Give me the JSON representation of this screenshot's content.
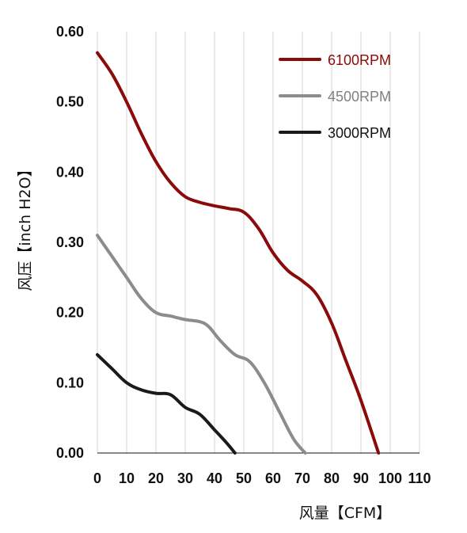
{
  "chart_data": {
    "type": "line",
    "title": "",
    "xlabel": "风量【CFM】",
    "ylabel": "风压【inch H2O】",
    "xlim": [
      0,
      110
    ],
    "ylim": [
      0,
      0.6
    ],
    "x_ticks": [
      "0",
      "10",
      "20",
      "30",
      "40",
      "50",
      "60",
      "70",
      "80",
      "90",
      "100",
      "110"
    ],
    "y_ticks": [
      "0.00",
      "0.10",
      "0.20",
      "0.30",
      "0.40",
      "0.50",
      "0.60"
    ],
    "grid": "vertical",
    "legend_position": "top-right",
    "series": [
      {
        "name": "6100RPM",
        "color": "#8b0a0a",
        "x": [
          0,
          5,
          10,
          15,
          20,
          25,
          30,
          35,
          40,
          45,
          50,
          55,
          60,
          65,
          70,
          75,
          80,
          85,
          90,
          96
        ],
        "y": [
          0.57,
          0.54,
          0.5,
          0.455,
          0.415,
          0.385,
          0.365,
          0.357,
          0.352,
          0.348,
          0.343,
          0.32,
          0.285,
          0.26,
          0.245,
          0.225,
          0.185,
          0.13,
          0.075,
          0.0
        ]
      },
      {
        "name": "4500RPM",
        "color": "#8c8c8c",
        "x": [
          0,
          5,
          10,
          15,
          20,
          25,
          30,
          35,
          38,
          42,
          47,
          52,
          57,
          62,
          67,
          71
        ],
        "y": [
          0.31,
          0.28,
          0.25,
          0.22,
          0.2,
          0.195,
          0.19,
          0.187,
          0.18,
          0.16,
          0.14,
          0.13,
          0.1,
          0.06,
          0.02,
          0.0
        ]
      },
      {
        "name": "3000RPM",
        "color": "#1a1a1a",
        "x": [
          0,
          5,
          10,
          15,
          20,
          25,
          30,
          35,
          40,
          44,
          47
        ],
        "y": [
          0.14,
          0.12,
          0.1,
          0.09,
          0.085,
          0.083,
          0.065,
          0.055,
          0.033,
          0.015,
          0.0
        ]
      }
    ]
  }
}
